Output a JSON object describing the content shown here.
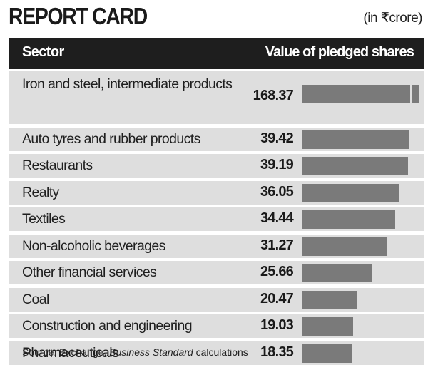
{
  "title": "REPORT CARD",
  "unit_note": "(in ₹crore)",
  "header": {
    "sector": "Sector",
    "value": "Value of pledged shares"
  },
  "source": {
    "prefix": "Source: Exchange, ",
    "publication": "Business Standard",
    "suffix": " calculations"
  },
  "colors": {
    "header_bg": "#1e1e1e",
    "row_bg": "#dedede",
    "bar": "#7a7a7a",
    "text": "#1a1a1a"
  },
  "chart_data": {
    "type": "bar",
    "orientation": "horizontal",
    "title": "REPORT CARD",
    "subtitle": "(in ₹crore)",
    "xlabel": "Value of pledged shares",
    "ylabel": "Sector",
    "categories": [
      "Iron and steel, intermediate products",
      "Auto tyres and rubber products",
      "Restaurants",
      "Realty",
      "Textiles",
      "Non-alcoholic beverages",
      "Other financial services",
      "Coal",
      "Construction and engineering",
      "Pharmaceuticals"
    ],
    "values": [
      168.37,
      39.42,
      39.19,
      36.05,
      34.44,
      31.27,
      25.66,
      20.47,
      19.03,
      18.35
    ],
    "value_labels": [
      "168.37",
      "39.42",
      "39.19",
      "36.05",
      "34.44",
      "31.27",
      "25.66",
      "20.47",
      "19.03",
      "18.35"
    ],
    "axis_break_on_first_bar": true,
    "grid": false,
    "legend": "none",
    "source": "Source: Exchange, Business Standard calculations"
  }
}
